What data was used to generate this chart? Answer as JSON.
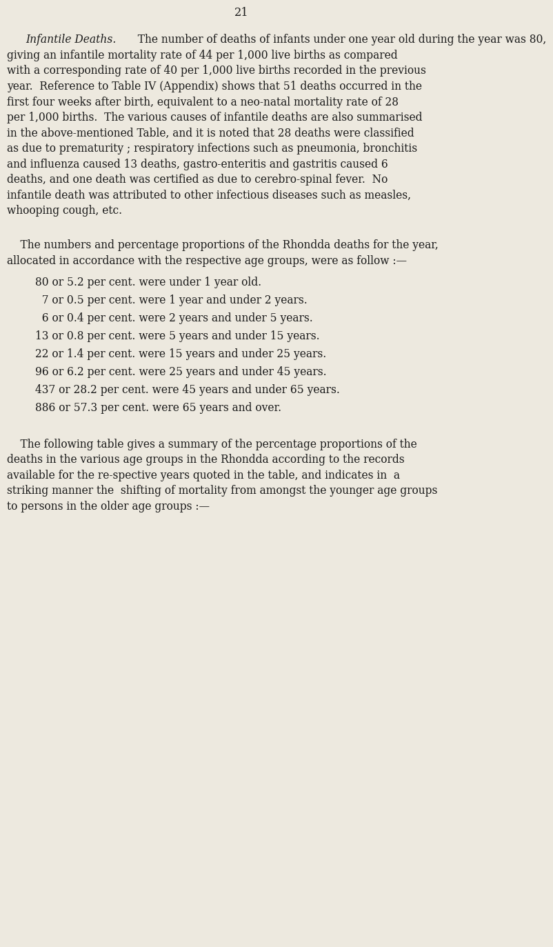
{
  "page_number": "21",
  "background_color": "#EDE9DF",
  "text_color": "#1a1a1a",
  "page_number_fontsize": 13,
  "body_fontsize": 12.5,
  "indent_fontsize": 12.5,
  "title_italic": "Infantile Deaths.",
  "paragraph1": "The number of deaths of infants under one year old during the year was 80, giving an infantile mortality rate of 44 per 1,000 live births as compared with a corresponding rate of 40 per 1,000 live births recorded in the previous year. Reference to Table IV (Appendix) shows that 51 deaths occurred in the first four weeks after birth, equivalent to a neo-natal mortality rate of 28 per 1,000 births. The various causes of infantile deaths are also summarised in the above-mentioned Table, and it is noted that 28 deaths were classified as due to prematurity ; respiratory infections such as pneumonia, bronchitis and influenza caused 13 deaths, gastro-enteritis and gastritis caused 6 deaths, and one death was certified as due to cerebro-spinal fever. No infantile death was attributed to other infectious diseases such as measles, whooping cough, etc.",
  "paragraph2_intro": "The numbers and percentage proportions of the Rhondda deaths for the year, allocated in accordance with the respective age groups, were as follow :—",
  "bullet_lines": [
    "80 or 5.2 per cent. were under 1 year old.",
    "  7 or 0.5 per cent. were 1 year and under 2 years.",
    "  6 or 0.4 per cent. were 2 years and under 5 years.",
    "13 or 0.8 per cent. were 5 years and under 15 years.",
    "22 or 1.4 per cent. were 15 years and under 25 years.",
    "96 or 6.2 per cent. were 25 years and under 45 years.",
    "437 or 28.2 per cent. were 45 years and under 65 years.",
    "886 or 57.3 per cent. were 65 years and over."
  ],
  "paragraph3": "The following table gives a summary of the percentage proportions of the deaths in the various age groups in the Rhondda according to the records available for the re-spective years quoted in the table, and indicates in  a striking manner the  shifting of mortality from amongst the younger age groups to persons in the older age groups :—"
}
